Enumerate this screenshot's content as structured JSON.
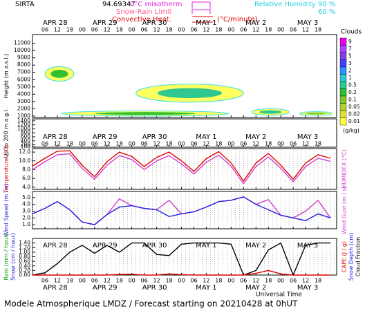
{
  "header": {
    "site": "SIRTA",
    "coord": "94.69347",
    "isotherm": "0°C misotherm",
    "snow_rain": "Snow-Rain Limit",
    "convective": "Convective Heat.",
    "convective_unit": "(°C/minute)",
    "rh": "Relative Humidity",
    "rh_high": "90 %",
    "rh_low": "60 %"
  },
  "footer": {
    "title": "Modele Atmospherique LMDZ / Forecast starting on 20210428 at 0hUT",
    "xlabel": "Universal Time"
  },
  "time_axis": {
    "xlim": [
      0,
      147
    ],
    "hour_ticks": [
      {
        "value": 6,
        "label": "06"
      },
      12,
      18,
      {
        "value": 24,
        "label": "00"
      },
      {
        "value": 30,
        "label": "06"
      },
      {
        "value": 36,
        "label": "12"
      },
      {
        "value": 42,
        "label": "18"
      },
      {
        "value": 48,
        "label": "00"
      },
      {
        "value": 54,
        "label": "06"
      },
      {
        "value": 60,
        "label": "12"
      },
      {
        "value": 66,
        "label": "18"
      },
      {
        "value": 72,
        "label": "00"
      },
      {
        "value": 78,
        "label": "06"
      },
      {
        "value": 84,
        "label": "12"
      },
      {
        "value": 90,
        "label": "18"
      },
      {
        "value": 96,
        "label": "00"
      },
      {
        "value": 102,
        "label": "06"
      },
      {
        "value": 108,
        "label": "12"
      },
      {
        "value": 114,
        "label": "18"
      },
      {
        "value": 120,
        "label": "00"
      },
      {
        "value": 126,
        "label": "06"
      },
      {
        "value": 132,
        "label": "12"
      },
      {
        "value": 138,
        "label": "18"
      }
    ],
    "day_labels": [
      {
        "value": 11,
        "label": "APR 28"
      },
      {
        "value": 35,
        "label": "APR 29"
      },
      {
        "value": 59,
        "label": "APR 30"
      },
      {
        "value": 84,
        "label": "MAY  1"
      },
      {
        "value": 108,
        "label": "MAY  2"
      },
      {
        "value": 133,
        "label": "MAY  3"
      }
    ]
  },
  "chart_data": [
    {
      "type": "contour",
      "ylabel": "Height (m a.s.l.)",
      "ylim": [
        800,
        12200
      ],
      "yticks": [
        1000,
        2000,
        3000,
        4000,
        5000,
        6000,
        7000,
        8000,
        9000,
        10000,
        11000
      ],
      "areas": [
        {
          "start": 6,
          "end": 20,
          "base": 5800,
          "top": 7800,
          "level": 0.2
        },
        {
          "start": 50,
          "end": 102,
          "base": 2900,
          "top": 5400,
          "level": 0.5
        },
        {
          "start": 14,
          "end": 95,
          "base": 1000,
          "top": 1700,
          "level": 0.2
        },
        {
          "start": 106,
          "end": 124,
          "base": 1100,
          "top": 2000,
          "level": 0.5
        },
        {
          "start": 129,
          "end": 145,
          "base": 1100,
          "top": 1600,
          "level": 0.1
        }
      ],
      "colorbar": {
        "title": "Clouds",
        "unit": "(g/kg)",
        "levels": [
          9,
          7,
          5,
          3,
          2,
          1,
          0.5,
          0.2,
          0.1,
          0.05,
          0.02,
          0.01
        ],
        "colors": [
          "#e800e8",
          "#b040ff",
          "#8040e0",
          "#4040ff",
          "#3090ff",
          "#30c8d0",
          "#30c890",
          "#30c030",
          "#80c830",
          "#b0d030",
          "#e0e040",
          "#ffff40"
        ]
      }
    },
    {
      "type": "axis",
      "ylabel": "Up to 200 m a.g.l.",
      "ylim": [
        80,
        1500
      ],
      "yticks": [
        100,
        200,
        400,
        600,
        800,
        1000,
        1200,
        1400
      ]
    },
    {
      "type": "line",
      "ylabel": "Temperature (°C)",
      "y2label": "HUMIDEX (°C)",
      "ylim": [
        3.5,
        12.8
      ],
      "yticks": [
        {
          "value": 4,
          "label": "4.0"
        },
        {
          "value": 6,
          "label": "6.0"
        },
        {
          "value": 8,
          "label": "8.0"
        },
        {
          "value": 10,
          "label": "10.0"
        },
        {
          "value": 12,
          "label": "12.0"
        }
      ],
      "x": [
        0,
        6,
        12,
        18,
        24,
        30,
        36,
        42,
        48,
        54,
        60,
        66,
        72,
        78,
        84,
        90,
        96,
        102,
        108,
        114,
        120,
        126,
        132,
        138,
        144
      ],
      "series": [
        {
          "name": "Temperature",
          "color": "#e00000",
          "values": [
            8.8,
            10.6,
            12.2,
            12.3,
            9.0,
            6.4,
            9.8,
            12.0,
            11.0,
            8.7,
            10.8,
            12.0,
            10.0,
            7.6,
            10.5,
            12.1,
            9.5,
            5.4,
            9.5,
            11.7,
            9.0,
            5.8,
            9.5,
            11.4,
            10.6
          ]
        },
        {
          "name": "HUMIDEX",
          "color": "#d040d0",
          "values": [
            8.0,
            9.8,
            11.4,
            11.6,
            8.3,
            5.8,
            9.0,
            11.2,
            10.3,
            8.0,
            10.0,
            11.2,
            9.3,
            7.0,
            9.7,
            11.3,
            8.8,
            4.8,
            8.7,
            10.9,
            8.3,
            5.2,
            8.7,
            10.6,
            9.9
          ]
        }
      ]
    },
    {
      "type": "line",
      "ylabel": "Wind Speed (m / s)",
      "y2label": "Wind Gust (m / s)",
      "ylim": [
        0.4,
        5.9
      ],
      "yticks": [
        {
          "value": 1,
          "label": "1.0"
        },
        {
          "value": 2,
          "label": "2.0"
        },
        {
          "value": 3,
          "label": "3.0"
        },
        {
          "value": 4,
          "label": "4.0"
        },
        {
          "value": 5,
          "label": "5.0"
        }
      ],
      "x": [
        0,
        6,
        12,
        18,
        24,
        30,
        36,
        42,
        48,
        54,
        60,
        66,
        72,
        78,
        84,
        90,
        96,
        102,
        108,
        114,
        120,
        126,
        132,
        138,
        144
      ],
      "series": [
        {
          "name": "Wind Gust",
          "color": "#d040d0",
          "values": [
            2.6,
            3.4,
            4.4,
            3.2,
            1.4,
            1.0,
            2.5,
            4.8,
            3.8,
            3.4,
            3.2,
            4.6,
            2.6,
            2.9,
            3.6,
            4.4,
            4.6,
            5.1,
            4.0,
            4.7,
            2.4,
            2.0,
            3.0,
            4.6,
            2.0
          ]
        },
        {
          "name": "Wind Speed",
          "color": "#2020e0",
          "values": [
            2.6,
            3.4,
            4.4,
            3.2,
            1.4,
            1.0,
            2.5,
            3.6,
            3.8,
            3.4,
            3.2,
            2.2,
            2.6,
            2.9,
            3.6,
            4.4,
            4.6,
            5.1,
            4.0,
            3.2,
            2.4,
            2.0,
            1.6,
            2.6,
            2.0
          ]
        }
      ]
    },
    {
      "type": "line",
      "ylabel": "Rain (mm / hour)",
      "ylabel2": "Snow (cm / hour)",
      "y2label": "CAPE (J / g)",
      "y2label2": "Snow Depth (cm)",
      "y2label3": "Cloud Fraction",
      "ylim": [
        0,
        1.6
      ],
      "yticks": [
        {
          "value": 0,
          "label": "0.00"
        },
        {
          "value": 0.2,
          "label": "0.20"
        },
        {
          "value": 0.4,
          "label": "0.40"
        },
        {
          "value": 0.6,
          "label": "0.60"
        },
        {
          "value": 0.8,
          "label": "0.80"
        },
        {
          "value": 1,
          "label": "1.00"
        },
        {
          "value": 1.2,
          "label": "1.20"
        },
        {
          "value": 1.4,
          "label": "1.40"
        }
      ],
      "x": [
        0,
        6,
        12,
        18,
        24,
        30,
        36,
        42,
        48,
        54,
        60,
        66,
        72,
        78,
        84,
        90,
        96,
        102,
        108,
        114,
        120,
        126,
        132,
        138,
        144
      ],
      "series": [
        {
          "name": "Cloud Fraction",
          "color": "#000000",
          "values": [
            0.0,
            0.1,
            0.5,
            1.0,
            1.3,
            0.95,
            1.3,
            1.0,
            1.4,
            1.4,
            0.9,
            0.85,
            1.35,
            1.4,
            1.4,
            1.4,
            1.35,
            0.0,
            0.2,
            1.1,
            1.4,
            0.0,
            1.3,
            1.4,
            1.4
          ]
        },
        {
          "name": "CAPE",
          "color": "#e00000",
          "values": [
            0,
            0,
            0,
            0,
            0,
            0,
            0,
            0.03,
            0.04,
            0,
            0,
            0.05,
            0.02,
            0,
            0,
            0,
            0,
            0,
            0.08,
            0.2,
            0.05,
            0,
            0,
            0,
            0
          ]
        }
      ]
    }
  ]
}
